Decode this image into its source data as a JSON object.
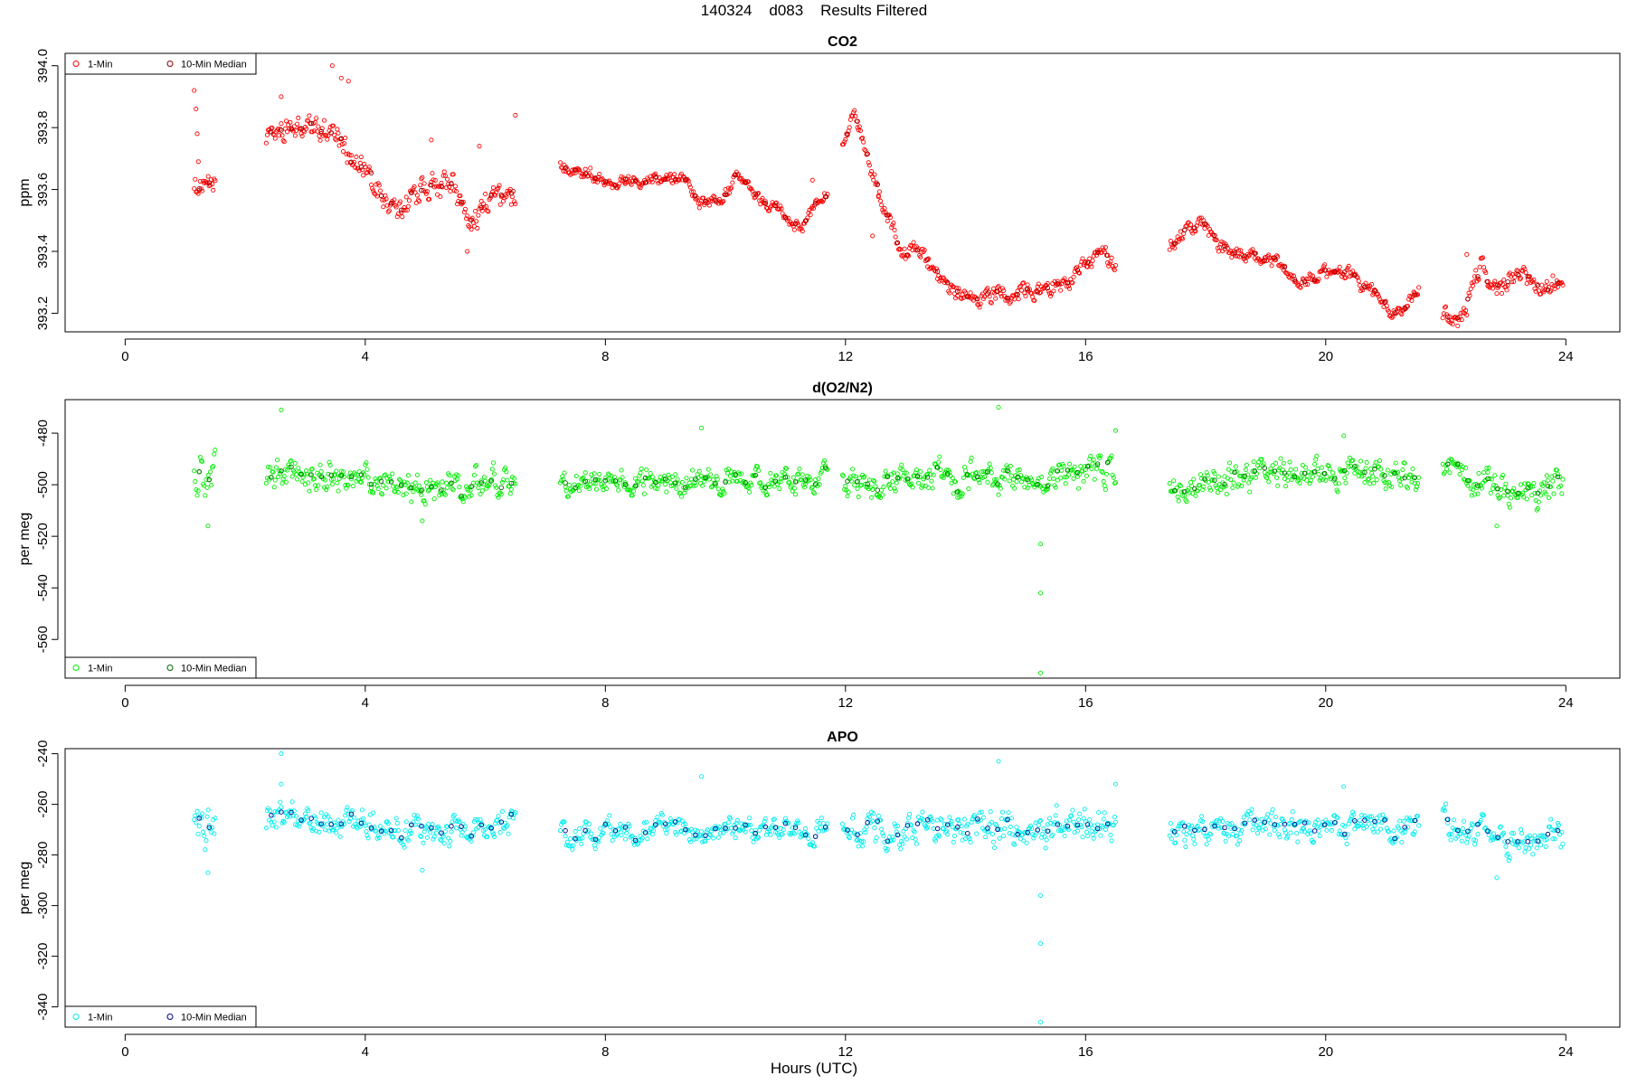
{
  "header": {
    "title": "140324    d083    Results Filtered"
  },
  "footer": {
    "xlabel": "Hours (UTC)"
  },
  "chart_data": [
    {
      "id": "co2",
      "type": "scatter",
      "title": "CO2",
      "ylabel": "ppm",
      "xlim": [
        -1.0,
        24.9
      ],
      "ylim": [
        393.14,
        394.04
      ],
      "xticks": [
        0,
        4,
        8,
        12,
        16,
        20,
        24
      ],
      "yticks": [
        393.2,
        393.4,
        393.6,
        393.8,
        394.0
      ],
      "yticklabels": [
        "393.2",
        "393.4",
        "393.6",
        "393.8",
        "394.0"
      ],
      "legend": {
        "position": "top-left",
        "entries": [
          "1-Min",
          "10-Min Median"
        ]
      },
      "colors": {
        "raw": "#ff0000",
        "median": "#8b0000"
      },
      "series": [
        {
          "name": "1-Min",
          "kind": "raw"
        },
        {
          "name": "10-Min Median",
          "kind": "median"
        }
      ],
      "segments": [
        {
          "x": [
            1.15,
            1.5
          ],
          "knots": [
            [
              1.15,
              393.62
            ],
            [
              1.3,
              393.6
            ],
            [
              1.5,
              393.62
            ]
          ],
          "noise": 0.03,
          "spikes": [
            [
              1.15,
              393.92
            ],
            [
              1.18,
              393.86
            ],
            [
              1.2,
              393.78
            ],
            [
              1.22,
              393.69
            ]
          ]
        },
        {
          "x": [
            2.35,
            6.5
          ],
          "knots": [
            [
              2.35,
              393.78
            ],
            [
              3.0,
              393.8
            ],
            [
              3.5,
              393.79
            ],
            [
              3.8,
              393.7
            ],
            [
              4.1,
              393.62
            ],
            [
              4.5,
              393.52
            ],
            [
              4.9,
              393.6
            ],
            [
              5.4,
              393.62
            ],
            [
              5.8,
              393.5
            ],
            [
              6.1,
              393.58
            ],
            [
              6.5,
              393.55
            ]
          ],
          "noise": 0.04,
          "spikes": [
            [
              3.45,
              394.0
            ],
            [
              3.6,
              393.96
            ],
            [
              3.72,
              393.95
            ],
            [
              2.6,
              393.9
            ],
            [
              5.7,
              393.4
            ],
            [
              5.9,
              393.74
            ],
            [
              6.5,
              393.84
            ],
            [
              5.1,
              393.76
            ]
          ]
        },
        {
          "x": [
            7.25,
            11.7
          ],
          "knots": [
            [
              7.25,
              393.68
            ],
            [
              7.6,
              393.66
            ],
            [
              8.2,
              393.62
            ],
            [
              8.8,
              393.64
            ],
            [
              9.3,
              393.64
            ],
            [
              9.6,
              393.55
            ],
            [
              9.9,
              393.56
            ],
            [
              10.2,
              393.64
            ],
            [
              10.6,
              393.56
            ],
            [
              11.0,
              393.52
            ],
            [
              11.25,
              393.47
            ],
            [
              11.5,
              393.55
            ],
            [
              11.7,
              393.59
            ]
          ],
          "noise": 0.018,
          "spikes": [
            [
              11.45,
              393.63
            ]
          ]
        },
        {
          "x": [
            11.95,
            16.5
          ],
          "knots": [
            [
              11.95,
              393.75
            ],
            [
              12.15,
              393.88
            ],
            [
              12.4,
              393.66
            ],
            [
              12.7,
              393.52
            ],
            [
              12.95,
              393.37
            ],
            [
              13.2,
              393.42
            ],
            [
              13.6,
              393.28
            ],
            [
              14.2,
              393.25
            ],
            [
              14.8,
              393.27
            ],
            [
              15.4,
              393.28
            ],
            [
              15.8,
              393.31
            ],
            [
              16.2,
              393.4
            ],
            [
              16.5,
              393.36
            ]
          ],
          "noise": 0.025,
          "spikes": [
            [
              12.55,
              393.58
            ],
            [
              12.45,
              393.45
            ]
          ]
        },
        {
          "x": [
            17.4,
            21.55
          ],
          "knots": [
            [
              17.4,
              393.42
            ],
            [
              17.7,
              393.47
            ],
            [
              17.95,
              393.49
            ],
            [
              18.2,
              393.42
            ],
            [
              18.6,
              393.39
            ],
            [
              19.1,
              393.37
            ],
            [
              19.5,
              393.3
            ],
            [
              19.9,
              393.33
            ],
            [
              20.3,
              393.34
            ],
            [
              20.7,
              393.28
            ],
            [
              21.1,
              393.2
            ],
            [
              21.3,
              393.22
            ],
            [
              21.55,
              393.26
            ]
          ],
          "noise": 0.022,
          "spikes": []
        },
        {
          "x": [
            21.95,
            23.95
          ],
          "knots": [
            [
              21.95,
              393.2
            ],
            [
              22.15,
              393.17
            ],
            [
              22.35,
              393.23
            ],
            [
              22.6,
              393.35
            ],
            [
              22.9,
              393.26
            ],
            [
              23.2,
              393.35
            ],
            [
              23.5,
              393.28
            ],
            [
              23.95,
              393.3
            ]
          ],
          "noise": 0.03,
          "spikes": [
            [
              22.35,
              393.39
            ]
          ]
        }
      ]
    },
    {
      "id": "o2n2",
      "type": "scatter",
      "title": "d(O2/N2)",
      "ylabel": "per meg",
      "xlim": [
        -1.0,
        24.9
      ],
      "ylim": [
        -575,
        -467
      ],
      "xticks": [
        0,
        4,
        8,
        12,
        16,
        20,
        24
      ],
      "yticks": [
        -560,
        -540,
        -520,
        -500,
        -480
      ],
      "yticklabels": [
        "-560",
        "-540",
        "-520",
        "-500",
        "-480"
      ],
      "legend": {
        "position": "bottom-left",
        "entries": [
          "1-Min",
          "10-Min Median"
        ]
      },
      "colors": {
        "raw": "#00ee00",
        "median": "#006400"
      },
      "series": [
        {
          "name": "1-Min",
          "kind": "raw"
        },
        {
          "name": "10-Min Median",
          "kind": "median"
        }
      ],
      "segments": [
        {
          "x": [
            1.15,
            1.5
          ],
          "knots": [
            [
              1.15,
              -496
            ],
            [
              1.5,
              -497
            ]
          ],
          "noise": 7,
          "spikes": [
            [
              1.38,
              -516
            ]
          ]
        },
        {
          "x": [
            2.35,
            6.5
          ],
          "knots": [
            [
              2.35,
              -496
            ],
            [
              4.0,
              -497
            ],
            [
              5.0,
              -502
            ],
            [
              6.5,
              -497
            ]
          ],
          "noise": 5.5,
          "spikes": [
            [
              2.6,
              -471
            ],
            [
              4.95,
              -514
            ]
          ]
        },
        {
          "x": [
            7.25,
            11.7
          ],
          "knots": [
            [
              7.25,
              -500
            ],
            [
              9.0,
              -499
            ],
            [
              11.7,
              -498
            ]
          ],
          "noise": 4.5,
          "spikes": [
            [
              9.6,
              -478
            ]
          ]
        },
        {
          "x": [
            11.95,
            16.5
          ],
          "knots": [
            [
              11.95,
              -500
            ],
            [
              13.5,
              -497
            ],
            [
              15.0,
              -497
            ],
            [
              16.5,
              -495
            ]
          ],
          "noise": 6,
          "spikes": [
            [
              14.55,
              -470
            ],
            [
              15.25,
              -523
            ],
            [
              15.25,
              -542
            ],
            [
              15.25,
              -573
            ],
            [
              16.5,
              -479
            ]
          ]
        },
        {
          "x": [
            17.4,
            21.55
          ],
          "knots": [
            [
              17.4,
              -501
            ],
            [
              19.0,
              -496
            ],
            [
              21.55,
              -496
            ]
          ],
          "noise": 5,
          "spikes": [
            [
              20.3,
              -481
            ]
          ]
        },
        {
          "x": [
            21.95,
            23.95
          ],
          "knots": [
            [
              21.95,
              -494
            ],
            [
              22.5,
              -498
            ],
            [
              23.0,
              -503
            ],
            [
              23.95,
              -500
            ]
          ],
          "noise": 5.5,
          "spikes": [
            [
              22.85,
              -516
            ]
          ]
        }
      ]
    },
    {
      "id": "apo",
      "type": "scatter",
      "title": "APO",
      "ylabel": "per meg",
      "xlim": [
        -1.0,
        24.9
      ],
      "ylim": [
        -348,
        -238
      ],
      "xticks": [
        0,
        4,
        8,
        12,
        16,
        20,
        24
      ],
      "yticks": [
        -340,
        -320,
        -300,
        -280,
        -260,
        -240
      ],
      "yticklabels": [
        "-340",
        "-320",
        "-300",
        "-280",
        "-260",
        "-240"
      ],
      "legend": {
        "position": "bottom-left",
        "entries": [
          "1-Min",
          "10-Min Median"
        ]
      },
      "colors": {
        "raw": "#00eeee",
        "median": "#00008b"
      },
      "series": [
        {
          "name": "1-Min",
          "kind": "raw"
        },
        {
          "name": "10-Min Median",
          "kind": "median"
        }
      ],
      "segments": [
        {
          "x": [
            1.15,
            1.5
          ],
          "knots": [
            [
              1.15,
              -268
            ],
            [
              1.5,
              -268
            ]
          ],
          "noise": 7,
          "spikes": [
            [
              1.38,
              -287
            ]
          ]
        },
        {
          "x": [
            2.35,
            6.5
          ],
          "knots": [
            [
              2.35,
              -266
            ],
            [
              4.0,
              -268
            ],
            [
              5.0,
              -272
            ],
            [
              6.5,
              -269
            ]
          ],
          "noise": 5.5,
          "spikes": [
            [
              2.6,
              -240
            ],
            [
              2.6,
              -252
            ],
            [
              4.95,
              -286
            ]
          ]
        },
        {
          "x": [
            7.25,
            11.7
          ],
          "knots": [
            [
              7.25,
              -272
            ],
            [
              9.0,
              -270
            ],
            [
              11.7,
              -270
            ]
          ],
          "noise": 4.5,
          "spikes": [
            [
              9.6,
              -249
            ]
          ]
        },
        {
          "x": [
            11.95,
            16.5
          ],
          "knots": [
            [
              11.95,
              -272
            ],
            [
              13.5,
              -269
            ],
            [
              15.0,
              -270
            ],
            [
              16.5,
              -268
            ]
          ],
          "noise": 6,
          "spikes": [
            [
              14.55,
              -243
            ],
            [
              15.25,
              -296
            ],
            [
              15.25,
              -315
            ],
            [
              15.25,
              -346
            ],
            [
              16.5,
              -252
            ]
          ]
        },
        {
          "x": [
            17.4,
            21.55
          ],
          "knots": [
            [
              17.4,
              -273
            ],
            [
              19.0,
              -269
            ],
            [
              21.55,
              -269
            ]
          ],
          "noise": 5,
          "spikes": [
            [
              20.3,
              -253
            ]
          ]
        },
        {
          "x": [
            21.95,
            23.95
          ],
          "knots": [
            [
              21.95,
              -267
            ],
            [
              22.5,
              -271
            ],
            [
              23.0,
              -275
            ],
            [
              23.95,
              -273
            ]
          ],
          "noise": 5.5,
          "spikes": [
            [
              22.85,
              -289
            ]
          ]
        }
      ]
    }
  ]
}
